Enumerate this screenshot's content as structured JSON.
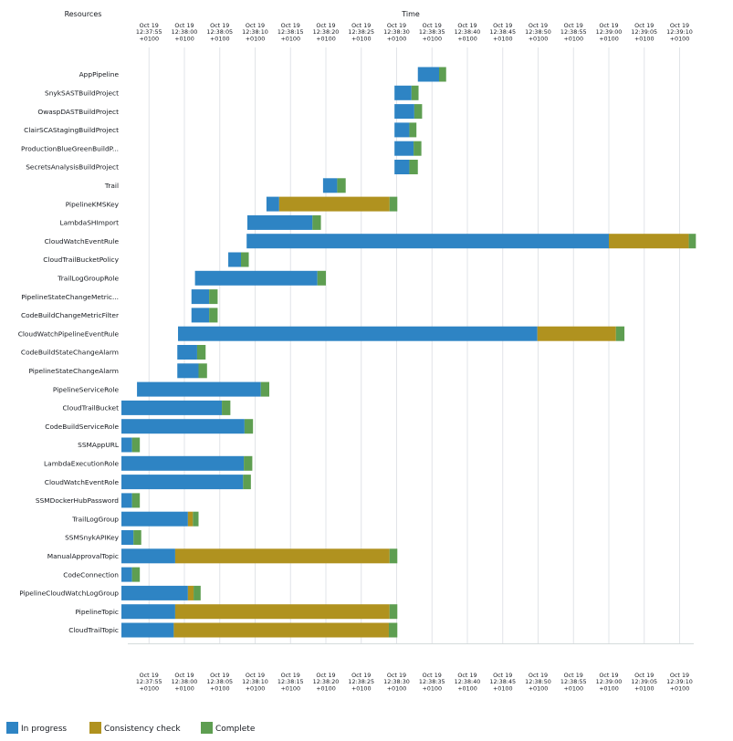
{
  "headers": {
    "resources": "Resources",
    "time": "Time"
  },
  "chart_data": {
    "type": "timeline",
    "x_axis": {
      "start": "12:37:52",
      "end": "12:39:12",
      "ticks": [
        [
          "Oct 19",
          "12:37:55",
          "+0100"
        ],
        [
          "Oct 19",
          "12:38:00",
          "+0100"
        ],
        [
          "Oct 19",
          "12:38:05",
          "+0100"
        ],
        [
          "Oct 19",
          "12:38:10",
          "+0100"
        ],
        [
          "Oct 19",
          "12:38:15",
          "+0100"
        ],
        [
          "Oct 19",
          "12:38:20",
          "+0100"
        ],
        [
          "Oct 19",
          "12:38:25",
          "+0100"
        ],
        [
          "Oct 19",
          "12:38:30",
          "+0100"
        ],
        [
          "Oct 19",
          "12:38:35",
          "+0100"
        ],
        [
          "Oct 19",
          "12:38:40",
          "+0100"
        ],
        [
          "Oct 19",
          "12:38:45",
          "+0100"
        ],
        [
          "Oct 19",
          "12:38:50",
          "+0100"
        ],
        [
          "Oct 19",
          "12:38:55",
          "+0100"
        ],
        [
          "Oct 19",
          "12:39:00",
          "+0100"
        ],
        [
          "Oct 19",
          "12:39:05",
          "+0100"
        ],
        [
          "Oct 19",
          "12:39:10",
          "+0100"
        ]
      ]
    },
    "status_colors": {
      "in_progress": "#2e84c4",
      "consistency_check": "#b0921f",
      "complete": "#5e9e51"
    },
    "legend": [
      {
        "key": "in_progress",
        "label": "In progress"
      },
      {
        "key": "consistency_check",
        "label": "Consistency check"
      },
      {
        "key": "complete",
        "label": "Complete"
      }
    ],
    "legend_position": "bottom-left",
    "resources": [
      {
        "name": "AppPipeline",
        "start": "12:38:33.0",
        "in_progress_end": "12:38:36.0",
        "consistency_end": "12:38:36.0",
        "end": "12:38:37.0"
      },
      {
        "name": "SnykSASTBuildProject",
        "start": "12:38:29.7",
        "in_progress_end": "12:38:32.1",
        "consistency_end": "12:38:32.1",
        "end": "12:38:33.1"
      },
      {
        "name": "OwaspDASTBuildProject",
        "start": "12:38:29.7",
        "in_progress_end": "12:38:32.5",
        "consistency_end": "12:38:32.5",
        "end": "12:38:33.6"
      },
      {
        "name": "ClairSCAStagingBuildProject",
        "start": "12:38:29.7",
        "in_progress_end": "12:38:31.8",
        "consistency_end": "12:38:31.8",
        "end": "12:38:32.8"
      },
      {
        "name": "ProductionBlueGreenBuildP...",
        "start": "12:38:29.7",
        "in_progress_end": "12:38:32.4",
        "consistency_end": "12:38:32.4",
        "end": "12:38:33.5"
      },
      {
        "name": "SecretsAnalysisBuildProject",
        "start": "12:38:29.7",
        "in_progress_end": "12:38:31.8",
        "consistency_end": "12:38:31.8",
        "end": "12:38:33.0"
      },
      {
        "name": "Trail",
        "start": "12:38:19.6",
        "in_progress_end": "12:38:21.6",
        "consistency_end": "12:38:21.6",
        "end": "12:38:22.8"
      },
      {
        "name": "PipelineKMSKey",
        "start": "12:38:11.6",
        "in_progress_end": "12:38:13.4",
        "consistency_end": "12:38:29.0",
        "end": "12:38:30.1"
      },
      {
        "name": "LambdaSHImport",
        "start": "12:38:08.9",
        "in_progress_end": "12:38:18.1",
        "consistency_end": "12:38:18.1",
        "end": "12:38:19.3"
      },
      {
        "name": "CloudWatchEventRule",
        "start": "12:38:08.8",
        "in_progress_end": "12:39:00.0",
        "consistency_end": "12:39:11.3",
        "end": "12:39:12.3"
      },
      {
        "name": "CloudTrailBucketPolicy",
        "start": "12:38:06.2",
        "in_progress_end": "12:38:08.0",
        "consistency_end": "12:38:08.0",
        "end": "12:38:09.1"
      },
      {
        "name": "TrailLogGroupRole",
        "start": "12:38:01.5",
        "in_progress_end": "12:38:18.8",
        "consistency_end": "12:38:18.8",
        "end": "12:38:20.0"
      },
      {
        "name": "PipelineStateChangeMetric...",
        "start": "12:38:01.0",
        "in_progress_end": "12:38:03.5",
        "consistency_end": "12:38:03.5",
        "end": "12:38:04.7"
      },
      {
        "name": "CodeBuildChangeMetricFilter",
        "start": "12:38:01.0",
        "in_progress_end": "12:38:03.5",
        "consistency_end": "12:38:03.5",
        "end": "12:38:04.7"
      },
      {
        "name": "CloudWatchPipelineEventRule",
        "start": "12:37:59.1",
        "in_progress_end": "12:38:49.9",
        "consistency_end": "12:39:01.0",
        "end": "12:39:02.2"
      },
      {
        "name": "CodeBuildStateChangeAlarm",
        "start": "12:37:59.0",
        "in_progress_end": "12:38:01.8",
        "consistency_end": "12:38:01.8",
        "end": "12:38:03.0"
      },
      {
        "name": "PipelineStateChangeAlarm",
        "start": "12:37:59.0",
        "in_progress_end": "12:38:02.0",
        "consistency_end": "12:38:02.0",
        "end": "12:38:03.2"
      },
      {
        "name": "PipelineServiceRole",
        "start": "12:37:53.3",
        "in_progress_end": "12:38:10.8",
        "consistency_end": "12:38:10.8",
        "end": "12:38:12.0"
      },
      {
        "name": "CloudTrailBucket",
        "start": "12:37:51.1",
        "in_progress_end": "12:38:05.3",
        "consistency_end": "12:38:05.3",
        "end": "12:38:06.5"
      },
      {
        "name": "CodeBuildServiceRole",
        "start": "12:37:51.1",
        "in_progress_end": "12:38:08.5",
        "consistency_end": "12:38:08.5",
        "end": "12:38:09.7"
      },
      {
        "name": "SSMAppURL",
        "start": "12:37:51.1",
        "in_progress_end": "12:37:52.6",
        "consistency_end": "12:37:52.6",
        "end": "12:37:53.7"
      },
      {
        "name": "LambdaExecutionRole",
        "start": "12:37:51.1",
        "in_progress_end": "12:38:08.4",
        "consistency_end": "12:38:08.4",
        "end": "12:38:09.6"
      },
      {
        "name": "CloudWatchEventRole",
        "start": "12:37:51.1",
        "in_progress_end": "12:38:08.3",
        "consistency_end": "12:38:08.3",
        "end": "12:38:09.4"
      },
      {
        "name": "SSMDockerHubPassword",
        "start": "12:37:51.1",
        "in_progress_end": "12:37:52.6",
        "consistency_end": "12:37:52.6",
        "end": "12:37:53.7"
      },
      {
        "name": "TrailLogGroup",
        "start": "12:37:51.1",
        "in_progress_end": "12:38:00.5",
        "consistency_end": "12:38:01.2",
        "end": "12:38:02.0"
      },
      {
        "name": "SSMSnykAPIKey",
        "start": "12:37:51.1",
        "in_progress_end": "12:37:52.8",
        "consistency_end": "12:37:52.8",
        "end": "12:37:53.9"
      },
      {
        "name": "ManualApprovalTopic",
        "start": "12:37:51.1",
        "in_progress_end": "12:37:58.7",
        "consistency_end": "12:38:29.0",
        "end": "12:38:30.1"
      },
      {
        "name": "CodeConnection",
        "start": "12:37:51.1",
        "in_progress_end": "12:37:52.6",
        "consistency_end": "12:37:52.6",
        "end": "12:37:53.7"
      },
      {
        "name": "PipelineCloudWatchLogGroup",
        "start": "12:37:51.1",
        "in_progress_end": "12:38:00.5",
        "consistency_end": "12:38:01.3",
        "end": "12:38:02.3"
      },
      {
        "name": "PipelineTopic",
        "start": "12:37:51.1",
        "in_progress_end": "12:37:58.7",
        "consistency_end": "12:38:29.0",
        "end": "12:38:30.1"
      },
      {
        "name": "CloudTrailTopic",
        "start": "12:37:51.1",
        "in_progress_end": "12:37:58.5",
        "consistency_end": "12:38:28.9",
        "end": "12:38:30.1"
      }
    ]
  }
}
